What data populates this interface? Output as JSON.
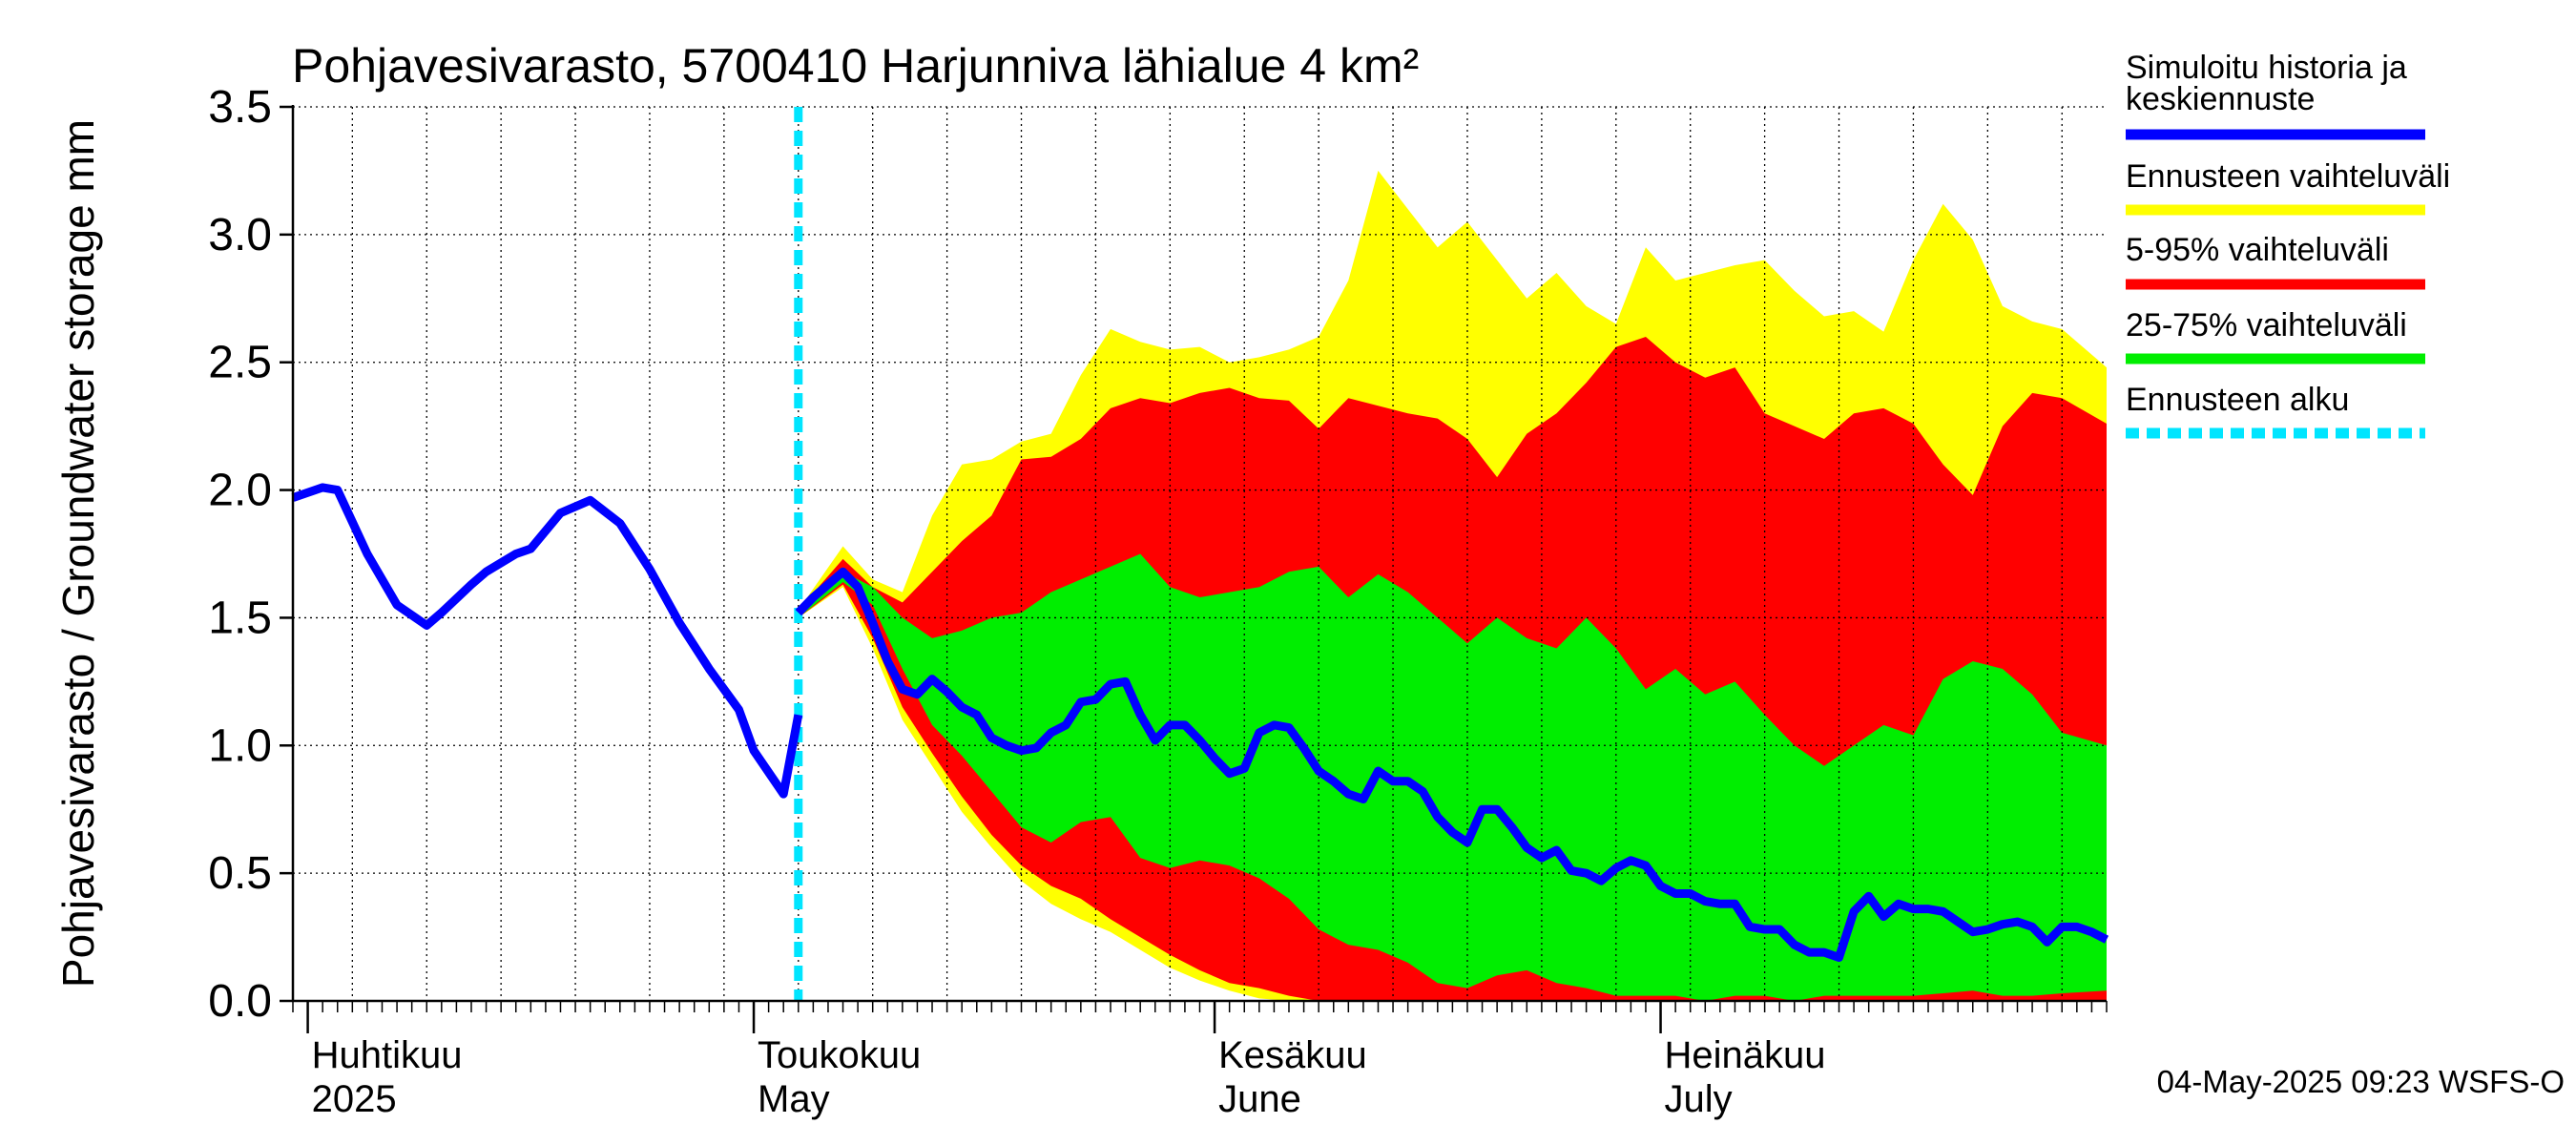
{
  "chart_data": {
    "type": "area",
    "title": "Pohjavesivarasto, 5700410 Harjunniva lähialue 4 km²",
    "ylabel": "Pohjavesivarasto / Groundwater storage   mm",
    "ylim": [
      0,
      3.5
    ],
    "yticks": [
      "0.0",
      "0.5",
      "1.0",
      "1.5",
      "2.0",
      "2.5",
      "3.0",
      "3.5"
    ],
    "xlim": [
      "2025-03-31",
      "2025-07-31"
    ],
    "grid": true,
    "month_labels": [
      {
        "date": "2025-04-01",
        "fi": "Huhtikuu",
        "en": "2025"
      },
      {
        "date": "2025-05-01",
        "fi": "Toukokuu",
        "en": "May"
      },
      {
        "date": "2025-06-01",
        "fi": "Kesäkuu",
        "en": "June"
      },
      {
        "date": "2025-07-01",
        "fi": "Heinäkuu",
        "en": "July"
      }
    ],
    "forecast_start": "2025-05-04",
    "timestamp": "04-May-2025 09:23 WSFS-O",
    "legend": [
      {
        "label": "Simuloitu historia ja keskiennuste",
        "color": "#0000ff",
        "style": "solid"
      },
      {
        "label": "Ennusteen vaihteluväli",
        "color": "#ffff00",
        "style": "solid"
      },
      {
        "label": "5-95% vaihteluväli",
        "color": "#ff0000",
        "style": "solid"
      },
      {
        "label": "25-75% vaihteluväli",
        "color": "#00ee00",
        "style": "solid"
      },
      {
        "label": "Ennusteen alku",
        "color": "#00e5ff",
        "style": "dashed"
      }
    ],
    "history": {
      "x": [
        "2025-03-31",
        "2025-04-02",
        "2025-04-03",
        "2025-04-05",
        "2025-04-07",
        "2025-04-09",
        "2025-04-10",
        "2025-04-12",
        "2025-04-13",
        "2025-04-15",
        "2025-04-16",
        "2025-04-18",
        "2025-04-20",
        "2025-04-22",
        "2025-04-24",
        "2025-04-26",
        "2025-04-28",
        "2025-04-30",
        "2025-05-01",
        "2025-05-03",
        "2025-05-04"
      ],
      "y": [
        1.97,
        2.01,
        2.0,
        1.75,
        1.55,
        1.47,
        1.52,
        1.63,
        1.68,
        1.75,
        1.77,
        1.91,
        1.96,
        1.87,
        1.69,
        1.48,
        1.3,
        1.14,
        0.98,
        0.81,
        1.12
      ]
    },
    "median": {
      "x": [
        "2025-05-04",
        "2025-05-05",
        "2025-05-06",
        "2025-05-07",
        "2025-05-08",
        "2025-05-09",
        "2025-05-10",
        "2025-05-11",
        "2025-05-12",
        "2025-05-13",
        "2025-05-14",
        "2025-05-15",
        "2025-05-16",
        "2025-05-17",
        "2025-05-18",
        "2025-05-19",
        "2025-05-20",
        "2025-05-21",
        "2025-05-22",
        "2025-05-23",
        "2025-05-24",
        "2025-05-25",
        "2025-05-26",
        "2025-05-27",
        "2025-05-28",
        "2025-05-29",
        "2025-05-30",
        "2025-05-31",
        "2025-06-01",
        "2025-06-02",
        "2025-06-03",
        "2025-06-04",
        "2025-06-05",
        "2025-06-06",
        "2025-06-07",
        "2025-06-08",
        "2025-06-09",
        "2025-06-10",
        "2025-06-11",
        "2025-06-12",
        "2025-06-13",
        "2025-06-14",
        "2025-06-15",
        "2025-06-16",
        "2025-06-17",
        "2025-06-18",
        "2025-06-19",
        "2025-06-20",
        "2025-06-21",
        "2025-06-22",
        "2025-06-23",
        "2025-06-24",
        "2025-06-25",
        "2025-06-26",
        "2025-06-27",
        "2025-06-28",
        "2025-06-29",
        "2025-06-30",
        "2025-07-01",
        "2025-07-02",
        "2025-07-03",
        "2025-07-04",
        "2025-07-05",
        "2025-07-06",
        "2025-07-07",
        "2025-07-08",
        "2025-07-09",
        "2025-07-10",
        "2025-07-11",
        "2025-07-12",
        "2025-07-13",
        "2025-07-14",
        "2025-07-15",
        "2025-07-16",
        "2025-07-17",
        "2025-07-18",
        "2025-07-19",
        "2025-07-20",
        "2025-07-21",
        "2025-07-22",
        "2025-07-23",
        "2025-07-24",
        "2025-07-25",
        "2025-07-26",
        "2025-07-27",
        "2025-07-28",
        "2025-07-29",
        "2025-07-30",
        "2025-07-31"
      ],
      "y": [
        1.52,
        1.58,
        1.63,
        1.68,
        1.62,
        1.48,
        1.33,
        1.22,
        1.2,
        1.26,
        1.21,
        1.15,
        1.12,
        1.03,
        1.0,
        0.98,
        0.99,
        1.05,
        1.08,
        1.17,
        1.18,
        1.24,
        1.25,
        1.12,
        1.02,
        1.08,
        1.08,
        1.02,
        0.95,
        0.89,
        0.91,
        1.05,
        1.08,
        1.07,
        0.99,
        0.9,
        0.86,
        0.81,
        0.79,
        0.9,
        0.86,
        0.86,
        0.82,
        0.72,
        0.66,
        0.62,
        0.75,
        0.75,
        0.68,
        0.6,
        0.56,
        0.59,
        0.51,
        0.5,
        0.47,
        0.52,
        0.55,
        0.53,
        0.45,
        0.42,
        0.42,
        0.39,
        0.38,
        0.38,
        0.29,
        0.28,
        0.28,
        0.22,
        0.19,
        0.19,
        0.17,
        0.35,
        0.41,
        0.33,
        0.38,
        0.36,
        0.36,
        0.35,
        0.31,
        0.27,
        0.28,
        0.3,
        0.31,
        0.29,
        0.23,
        0.29,
        0.29,
        0.27,
        0.24
      ]
    },
    "bands": {
      "x": [
        "2025-05-04",
        "2025-05-07",
        "2025-05-09",
        "2025-05-11",
        "2025-05-13",
        "2025-05-15",
        "2025-05-17",
        "2025-05-19",
        "2025-05-21",
        "2025-05-23",
        "2025-05-25",
        "2025-05-27",
        "2025-05-29",
        "2025-05-31",
        "2025-06-02",
        "2025-06-04",
        "2025-06-06",
        "2025-06-08",
        "2025-06-10",
        "2025-06-12",
        "2025-06-14",
        "2025-06-16",
        "2025-06-18",
        "2025-06-20",
        "2025-06-22",
        "2025-06-24",
        "2025-06-26",
        "2025-06-28",
        "2025-06-30",
        "2025-07-02",
        "2025-07-04",
        "2025-07-06",
        "2025-07-08",
        "2025-07-10",
        "2025-07-12",
        "2025-07-14",
        "2025-07-16",
        "2025-07-18",
        "2025-07-20",
        "2025-07-22",
        "2025-07-24",
        "2025-07-26",
        "2025-07-28",
        "2025-07-31"
      ],
      "min": [
        1.5,
        1.62,
        1.38,
        1.1,
        0.92,
        0.74,
        0.6,
        0.47,
        0.38,
        0.32,
        0.27,
        0.2,
        0.13,
        0.08,
        0.04,
        0.01,
        0,
        0,
        0,
        0,
        0,
        0,
        0,
        0,
        0,
        0,
        0,
        0,
        0,
        0,
        0,
        0,
        0,
        0,
        0,
        0,
        0,
        0,
        0,
        0,
        0,
        0,
        0,
        0
      ],
      "p5": [
        1.5,
        1.63,
        1.42,
        1.15,
        0.97,
        0.8,
        0.65,
        0.53,
        0.45,
        0.4,
        0.32,
        0.25,
        0.18,
        0.12,
        0.07,
        0.05,
        0.02,
        0,
        0,
        0,
        0,
        0,
        0,
        0,
        0,
        0,
        0,
        0,
        0,
        0,
        0,
        0,
        0,
        0,
        0,
        0,
        0,
        0,
        0,
        0,
        0,
        0,
        0,
        0
      ],
      "p25": [
        1.5,
        1.64,
        1.55,
        1.3,
        1.08,
        0.96,
        0.82,
        0.68,
        0.62,
        0.7,
        0.72,
        0.56,
        0.52,
        0.55,
        0.53,
        0.48,
        0.4,
        0.28,
        0.22,
        0.2,
        0.15,
        0.07,
        0.05,
        0.1,
        0.12,
        0.07,
        0.05,
        0.02,
        0.02,
        0.02,
        0.0,
        0.02,
        0.02,
        0.0,
        0.02,
        0.02,
        0.02,
        0.02,
        0.03,
        0.04,
        0.02,
        0.02,
        0.03,
        0.04
      ],
      "p75": [
        1.52,
        1.68,
        1.62,
        1.5,
        1.42,
        1.45,
        1.5,
        1.52,
        1.6,
        1.65,
        1.7,
        1.75,
        1.62,
        1.58,
        1.6,
        1.62,
        1.68,
        1.7,
        1.58,
        1.67,
        1.6,
        1.5,
        1.4,
        1.5,
        1.42,
        1.38,
        1.5,
        1.38,
        1.22,
        1.3,
        1.2,
        1.25,
        1.12,
        1.0,
        0.92,
        1.0,
        1.08,
        1.04,
        1.26,
        1.33,
        1.3,
        1.2,
        1.05,
        1.0
      ],
      "p95": [
        1.53,
        1.73,
        1.62,
        1.56,
        1.68,
        1.8,
        1.9,
        2.12,
        2.13,
        2.2,
        2.32,
        2.36,
        2.34,
        2.38,
        2.4,
        2.36,
        2.35,
        2.24,
        2.36,
        2.33,
        2.3,
        2.28,
        2.2,
        2.05,
        2.22,
        2.3,
        2.42,
        2.56,
        2.6,
        2.5,
        2.44,
        2.48,
        2.3,
        2.25,
        2.2,
        2.3,
        2.32,
        2.26,
        2.1,
        1.98,
        2.25,
        2.38,
        2.36,
        2.26
      ],
      "max": [
        1.53,
        1.78,
        1.65,
        1.6,
        1.9,
        2.1,
        2.12,
        2.19,
        2.22,
        2.45,
        2.63,
        2.58,
        2.55,
        2.56,
        2.5,
        2.52,
        2.55,
        2.6,
        2.82,
        3.25,
        3.1,
        2.95,
        3.05,
        2.9,
        2.75,
        2.85,
        2.72,
        2.65,
        2.95,
        2.82,
        2.85,
        2.88,
        2.9,
        2.78,
        2.68,
        2.7,
        2.62,
        2.9,
        3.12,
        2.98,
        2.72,
        2.66,
        2.63,
        2.48
      ]
    }
  }
}
